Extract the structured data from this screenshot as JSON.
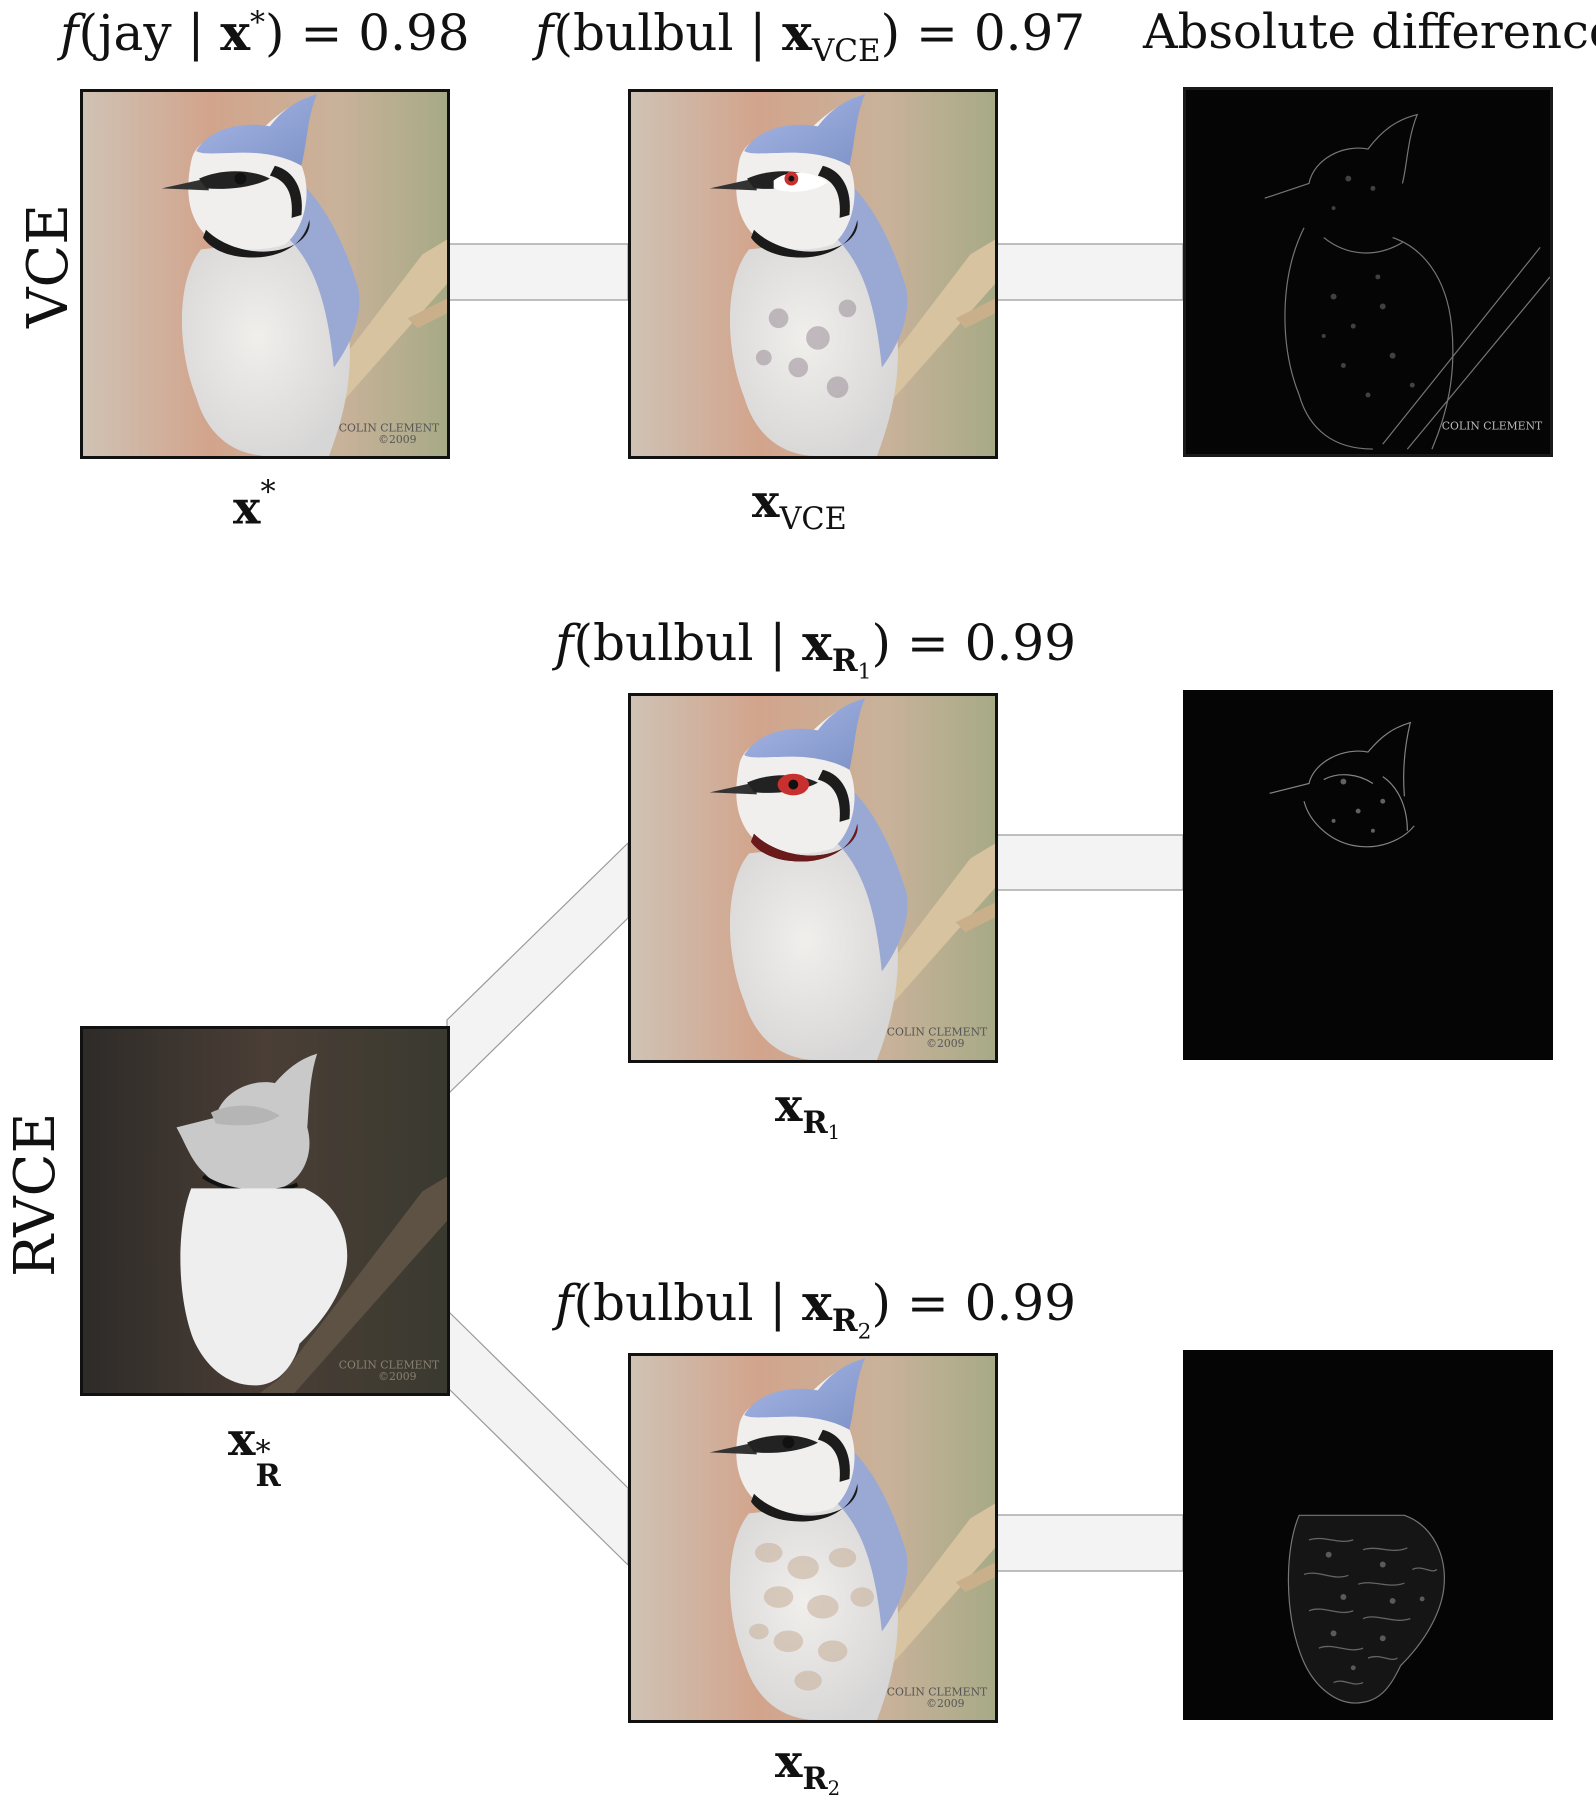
{
  "row_labels": {
    "vce": "VCE",
    "rvce": "RVCE"
  },
  "titles": {
    "jay_prob": {
      "class": "jay",
      "arg": "x",
      "arg_sup": "*",
      "value": "0.98"
    },
    "vce_prob": {
      "class": "bulbul",
      "arg": "x",
      "arg_sub": "VCE",
      "value": "0.97"
    },
    "abs_diff": "Absolute difference",
    "r1_prob": {
      "class": "bulbul",
      "arg": "x",
      "arg_sub": "R",
      "arg_subsub": "1",
      "value": "0.99"
    },
    "r2_prob": {
      "class": "bulbul",
      "arg": "x",
      "arg_sub": "R",
      "arg_subsub": "2",
      "value": "0.99"
    }
  },
  "labels": {
    "x_star": {
      "base": "x",
      "sup": "*"
    },
    "x_vce": {
      "base": "x",
      "sub": "VCE"
    },
    "x_r1": {
      "base": "x",
      "sub": "R",
      "subsub": "1"
    },
    "x_r_star": {
      "base": "x",
      "sup": "*",
      "sub": "R"
    },
    "x_r2": {
      "base": "x",
      "sub": "R",
      "subsub": "2"
    }
  },
  "watermark": {
    "line1": "COLIN CLEMENT",
    "line2": "©2009"
  },
  "colors": {
    "jay_crest": "#8d9fcf",
    "bulbul_eye": "#c83030",
    "background_warm": "#c7a58e",
    "background_green": "#a9ab8a",
    "diff_background": "#050505"
  }
}
